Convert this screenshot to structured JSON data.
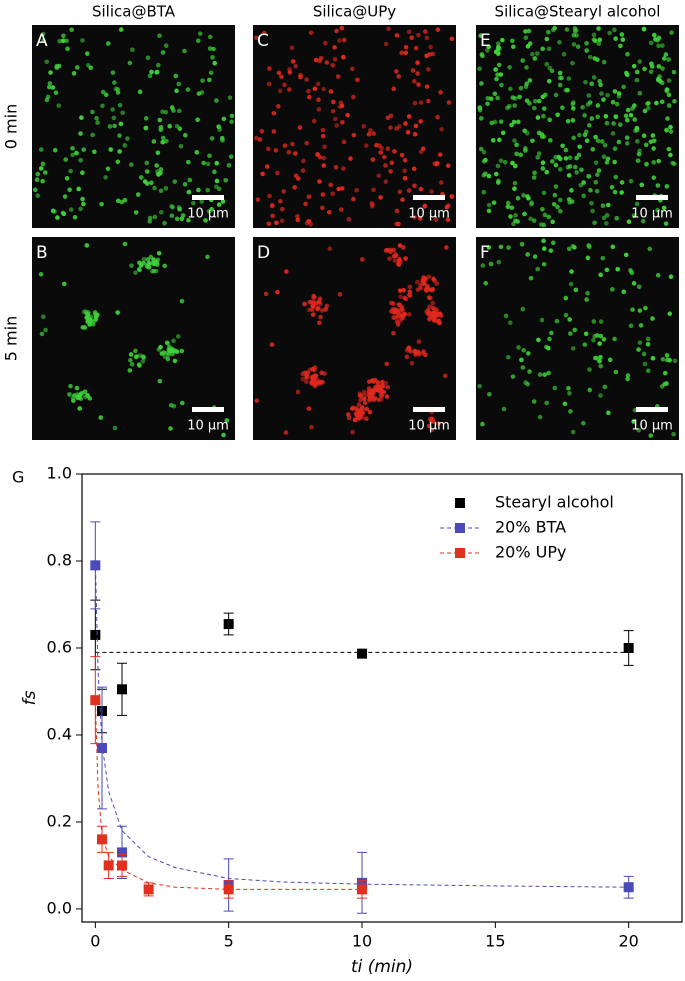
{
  "panels": {
    "columns": [
      "Silica@BTA",
      "Silica@UPy",
      "Silica@Stearyl alcohol"
    ],
    "rows": [
      "0 min",
      "5 min"
    ],
    "letters": [
      [
        "A",
        "B"
      ],
      [
        "C",
        "D"
      ],
      [
        "E",
        "F"
      ]
    ],
    "scale_label": "10 μm"
  },
  "chart_data": {
    "type": "scatter",
    "panel_label": "G",
    "xlabel": "ti (min)",
    "ylabel": "fs",
    "xlim": [
      -0.5,
      22
    ],
    "ylim": [
      -0.03,
      1.0
    ],
    "xticks": [
      0,
      5,
      10,
      15,
      20
    ],
    "yticks": [
      {
        "value": 0,
        "label": "0.0"
      },
      {
        "value": 0.2,
        "label": "0.2"
      },
      {
        "value": 0.4,
        "label": "0.4"
      },
      {
        "value": 0.6,
        "label": "0.6"
      },
      {
        "value": 0.8,
        "label": "0.8"
      },
      {
        "value": 1.0,
        "label": "1.0"
      }
    ],
    "legend": "upper right",
    "series": [
      {
        "name": "Stearyl alcohol",
        "color": "#000000",
        "x": [
          0,
          0.25,
          1,
          5,
          10,
          20
        ],
        "values": [
          0.63,
          0.455,
          0.505,
          0.655,
          0.587,
          0.6
        ],
        "errors": [
          0.08,
          0.05,
          0.06,
          0.025,
          0.005,
          0.04
        ],
        "fit": {
          "x": [
            0,
            20
          ],
          "values": [
            0.59,
            0.59
          ]
        }
      },
      {
        "name": "20% BTA",
        "color": "#4a4ab8",
        "x": [
          0,
          0.25,
          1,
          5,
          10,
          20
        ],
        "values": [
          0.79,
          0.37,
          0.13,
          0.055,
          0.06,
          0.05
        ],
        "errors": [
          0.1,
          0.14,
          0.06,
          0.06,
          0.07,
          0.025
        ],
        "fit": {
          "x": [
            0,
            0.1,
            0.25,
            0.5,
            1,
            2,
            3,
            5,
            7,
            10,
            15,
            20
          ],
          "values": [
            0.8,
            0.55,
            0.38,
            0.27,
            0.18,
            0.12,
            0.095,
            0.07,
            0.062,
            0.057,
            0.053,
            0.05
          ]
        }
      },
      {
        "name": "20% UPy",
        "color": "#e03020",
        "x": [
          0,
          0.25,
          0.5,
          1,
          2,
          5,
          10
        ],
        "values": [
          0.48,
          0.16,
          0.1,
          0.1,
          0.045,
          0.045,
          0.045
        ],
        "errors": [
          0.1,
          0.03,
          0.03,
          0.025,
          0.015,
          0.02,
          0.02
        ],
        "fit": {
          "x": [
            0,
            0.1,
            0.25,
            0.5,
            1,
            2,
            3,
            5,
            7,
            10
          ],
          "values": [
            0.48,
            0.28,
            0.17,
            0.12,
            0.09,
            0.06,
            0.05,
            0.045,
            0.045,
            0.045
          ]
        }
      }
    ]
  }
}
